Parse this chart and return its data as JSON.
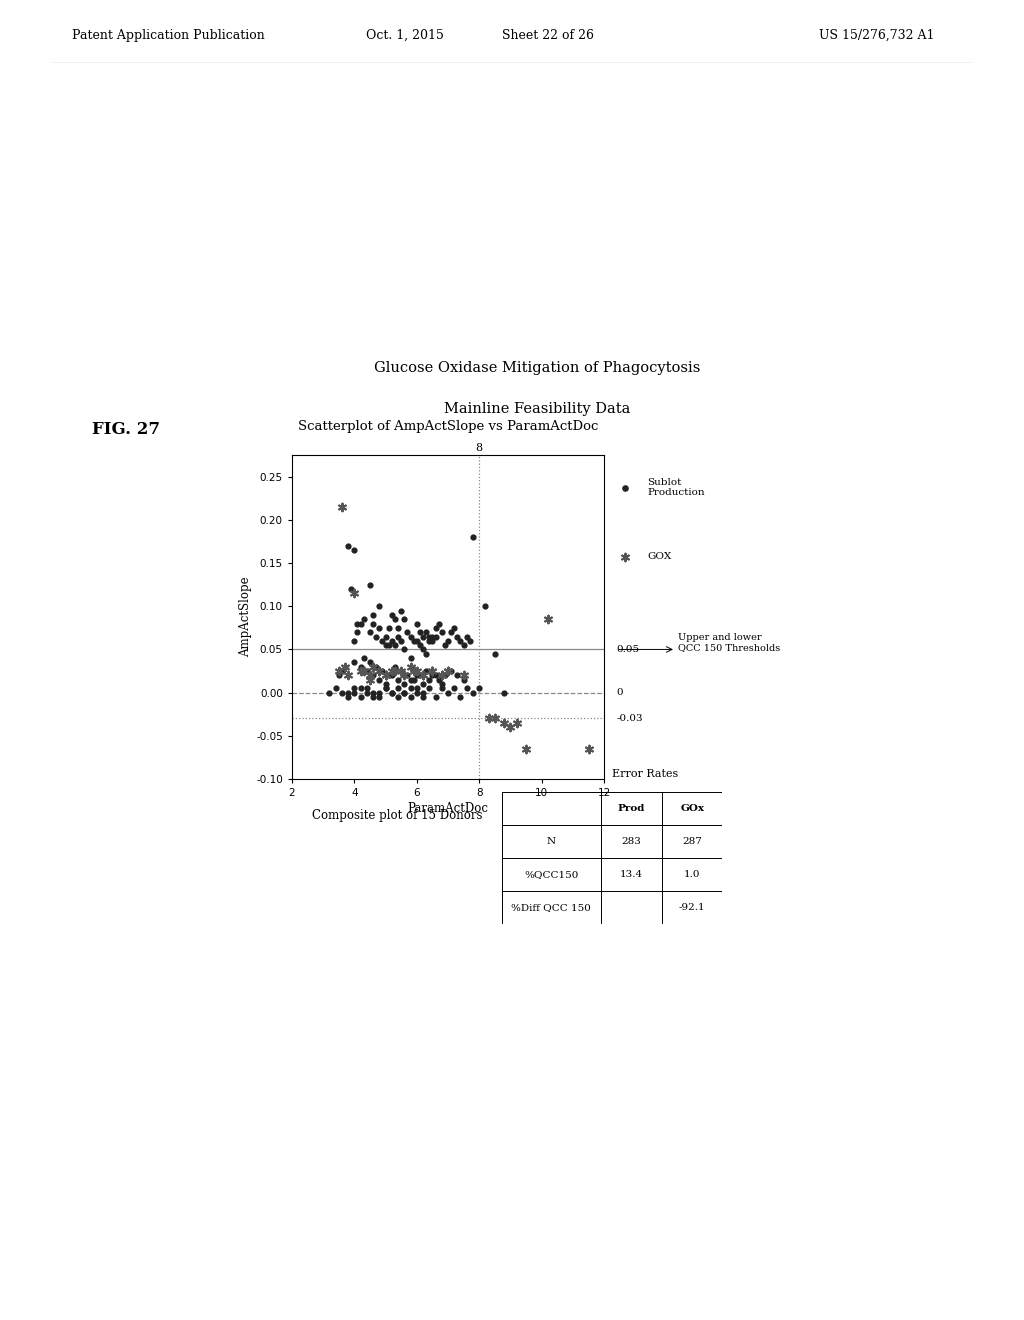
{
  "title_main": "Glucose Oxidase Mitigation of Phagocytosis",
  "title_sub": "Mainline Feasibility Data",
  "plot_title": "Scatterplot of AmpActSlope vs ParamActDoc",
  "xlabel": "ParamActDoc",
  "ylabel": "AmpActSlope",
  "xlim": [
    2,
    12
  ],
  "ylim": [
    -0.1,
    0.275
  ],
  "xticks": [
    2,
    4,
    6,
    8,
    10,
    12
  ],
  "yticks": [
    -0.1,
    -0.05,
    0.0,
    0.05,
    0.1,
    0.15,
    0.2,
    0.25
  ],
  "vline_x": 8,
  "vline_label": "8",
  "hline_solid": 0.05,
  "hline_dashed": 0.0,
  "hline_dotted": -0.03,
  "rhs_labels": [
    "0.05",
    "0",
    "-0.03"
  ],
  "annotation_text": "Upper and lower\nQCC 150 Thresholds",
  "composite_text": "Composite plot of 15 Donors",
  "fig_label": "FIG. 27",
  "patent_header": "Patent Application Publication",
  "patent_date": "Oct. 1, 2015",
  "patent_sheet": "Sheet 22 of 26",
  "patent_number": "US 15/276,732 A1",
  "table_title": "Error Rates",
  "table_headers": [
    "",
    "Prod",
    "GOx"
  ],
  "table_rows": [
    [
      "N",
      "283",
      "287"
    ],
    [
      "%QCC150",
      "13.4",
      "1.0"
    ],
    [
      "%Diff QCC 150",
      "",
      "-92.1"
    ]
  ],
  "prod_x": [
    3.8,
    3.9,
    4.0,
    4.1,
    4.0,
    4.2,
    4.3,
    4.1,
    4.5,
    4.6,
    4.5,
    4.7,
    4.6,
    4.8,
    4.9,
    5.0,
    4.8,
    5.1,
    5.2,
    5.0,
    5.1,
    5.3,
    5.4,
    5.2,
    5.5,
    5.4,
    5.3,
    5.6,
    5.5,
    5.7,
    5.8,
    5.6,
    5.9,
    6.0,
    5.8,
    6.1,
    6.0,
    6.2,
    6.3,
    6.1,
    6.4,
    6.2,
    6.5,
    6.3,
    6.6,
    6.4,
    6.7,
    6.5,
    6.8,
    6.6,
    7.0,
    6.9,
    7.1,
    7.2,
    7.3,
    7.4,
    7.5,
    7.6,
    7.7,
    7.8,
    8.2,
    3.5,
    3.6,
    3.7,
    4.0,
    4.2,
    4.4,
    4.6,
    4.8,
    5.0,
    5.2,
    5.4,
    5.6,
    5.8,
    6.0,
    6.2,
    6.4,
    6.6,
    6.8,
    4.3,
    4.5,
    4.7,
    4.9,
    5.1,
    5.3,
    5.5,
    5.7,
    5.9,
    6.1,
    6.3,
    6.5,
    6.7,
    6.9,
    7.1,
    7.3,
    7.5,
    3.8,
    4.0,
    4.2,
    4.4,
    4.6,
    4.8,
    5.0,
    5.2,
    5.4,
    5.6,
    5.8,
    6.0,
    6.2,
    6.4,
    6.6,
    6.8,
    7.0,
    7.2,
    7.4,
    7.6,
    7.8,
    8.0,
    8.5,
    8.8,
    3.2,
    3.4,
    3.6,
    3.8,
    4.0,
    4.2,
    4.4,
    4.6,
    4.8,
    5.0,
    5.2,
    5.4,
    5.6,
    5.8,
    6.0,
    6.2
  ],
  "prod_y": [
    0.17,
    0.12,
    0.06,
    0.08,
    0.165,
    0.08,
    0.085,
    0.07,
    0.125,
    0.09,
    0.07,
    0.065,
    0.08,
    0.075,
    0.06,
    0.055,
    0.1,
    0.075,
    0.09,
    0.065,
    0.055,
    0.085,
    0.075,
    0.06,
    0.095,
    0.065,
    0.055,
    0.085,
    0.06,
    0.07,
    0.065,
    0.05,
    0.06,
    0.08,
    0.04,
    0.07,
    0.06,
    0.065,
    0.07,
    0.055,
    0.06,
    0.05,
    0.065,
    0.045,
    0.075,
    0.065,
    0.08,
    0.06,
    0.07,
    0.065,
    0.06,
    0.055,
    0.07,
    0.075,
    0.065,
    0.06,
    0.055,
    0.065,
    0.06,
    0.18,
    0.1,
    0.02,
    0.025,
    0.03,
    0.035,
    0.03,
    0.025,
    0.02,
    0.015,
    0.01,
    0.02,
    0.015,
    0.01,
    0.015,
    0.02,
    0.01,
    0.015,
    0.02,
    0.01,
    0.04,
    0.035,
    0.03,
    0.025,
    0.02,
    0.03,
    0.025,
    0.02,
    0.015,
    0.02,
    0.025,
    0.02,
    0.015,
    0.02,
    0.025,
    0.02,
    0.015,
    0.0,
    0.005,
    -0.005,
    0.005,
    0.0,
    -0.005,
    0.005,
    0.0,
    0.005,
    0.0,
    -0.005,
    0.005,
    0.0,
    0.005,
    -0.005,
    0.005,
    0.0,
    0.005,
    -0.005,
    0.005,
    0.0,
    0.005,
    0.045,
    0.0,
    0.0,
    0.005,
    0.0,
    -0.005,
    0.0,
    0.005,
    0.0,
    -0.005,
    0.0,
    0.005,
    0.0,
    -0.005,
    0.0,
    0.005,
    0.0,
    -0.005
  ],
  "gox_x": [
    3.6,
    3.7,
    4.0,
    4.3,
    4.5,
    4.6,
    4.8,
    5.0,
    5.2,
    5.5,
    5.8,
    6.0,
    6.2,
    6.5,
    6.8,
    7.0,
    8.3,
    8.5,
    8.8,
    9.0,
    9.2,
    9.5,
    10.2,
    11.5,
    3.5,
    3.8,
    4.2,
    4.5,
    4.8,
    5.0,
    5.3,
    5.6,
    5.9,
    6.2,
    6.5,
    6.8,
    7.0,
    7.5
  ],
  "gox_y": [
    0.215,
    0.03,
    0.115,
    0.025,
    0.015,
    0.03,
    0.025,
    0.02,
    0.025,
    0.025,
    0.03,
    0.025,
    0.02,
    0.025,
    0.02,
    0.025,
    -0.03,
    -0.03,
    -0.035,
    -0.04,
    -0.035,
    -0.065,
    0.085,
    -0.065,
    0.025,
    0.02,
    0.025,
    0.02,
    0.025,
    0.02,
    0.025,
    0.02,
    0.025,
    0.02,
    0.025,
    0.02,
    0.025,
    0.02
  ]
}
